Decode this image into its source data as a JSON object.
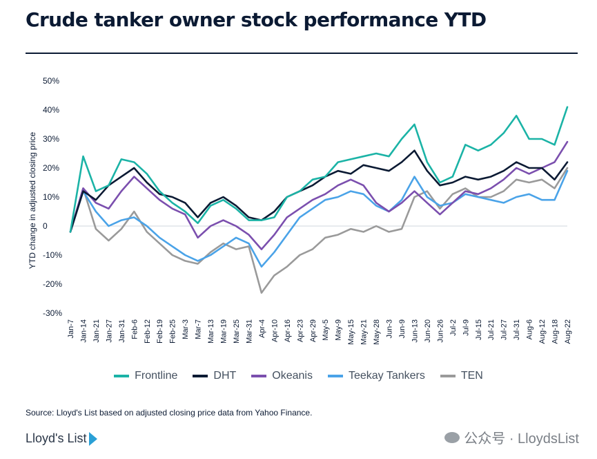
{
  "title": "Crude tanker owner stock performance YTD",
  "source": "Source: Lloyd's List based on adjusted closing price data from Yahoo Finance.",
  "brand": "Lloyd's List",
  "watermark": "公众号 · LloydsList",
  "chart_data": {
    "type": "line",
    "title": "Crude tanker owner stock performance YTD",
    "ylabel": "YTD change in adjusted closing price",
    "ylim": [
      -30,
      50
    ],
    "yticks": [
      50,
      40,
      30,
      20,
      10,
      0,
      -10,
      -20,
      -30
    ],
    "ytick_labels": [
      "50%",
      "40%",
      "30%",
      "20%",
      "10%",
      "0",
      "-10%",
      "-20%",
      "-30%"
    ],
    "categories": [
      "Jan-7",
      "Jan-14",
      "Jan-21",
      "Jan-27",
      "Jan-31",
      "Feb-6",
      "Feb-12",
      "Feb-19",
      "Feb-25",
      "Mar-3",
      "Mar-7",
      "Mar-13",
      "Mar-19",
      "Mar-25",
      "Mar-31",
      "Apr-4",
      "Apr-10",
      "Apr-16",
      "Apr-23",
      "Apr-29",
      "May-5",
      "May-9",
      "May-15",
      "May-21",
      "May-28",
      "Jun-3",
      "Jun-9",
      "Jun-13",
      "Jun-20",
      "Jun-26",
      "Jul-2",
      "Jul-9",
      "Jul-15",
      "Jul-21",
      "Jul-27",
      "Jul-31",
      "Aug-6",
      "Aug-12",
      "Aug-18",
      "Aug-22"
    ],
    "legend_position": "bottom",
    "grid": false,
    "series": [
      {
        "name": "Frontline",
        "color": "#1bb3a6",
        "values": [
          -2,
          24,
          12,
          14,
          23,
          22,
          18,
          12,
          8,
          5,
          1,
          7,
          9,
          6,
          2,
          2,
          3,
          10,
          12,
          16,
          17,
          22,
          23,
          24,
          25,
          24,
          30,
          35,
          22,
          15,
          17,
          28,
          26,
          28,
          32,
          38,
          30,
          30,
          28,
          41
        ]
      },
      {
        "name": "DHT",
        "color": "#0b1a33",
        "values": [
          -2,
          12,
          9,
          14,
          17,
          20,
          15,
          11,
          10,
          8,
          3,
          8,
          10,
          7,
          3,
          2,
          5,
          10,
          12,
          14,
          17,
          19,
          18,
          21,
          20,
          19,
          22,
          26,
          19,
          14,
          15,
          17,
          16,
          17,
          19,
          22,
          20,
          20,
          16,
          22
        ]
      },
      {
        "name": "Okeanis",
        "color": "#7b4fae",
        "values": [
          -2,
          13,
          8,
          6,
          12,
          17,
          13,
          9,
          6,
          4,
          -4,
          0,
          2,
          0,
          -3,
          -8,
          -3,
          3,
          6,
          9,
          11,
          14,
          16,
          14,
          8,
          5,
          8,
          12,
          8,
          4,
          8,
          12,
          11,
          13,
          16,
          20,
          18,
          20,
          22,
          29
        ]
      },
      {
        "name": "Teekay Tankers",
        "color": "#4aa3e8",
        "values": [
          -2,
          12,
          5,
          0,
          2,
          3,
          0,
          -4,
          -7,
          -10,
          -12,
          -10,
          -7,
          -4,
          -6,
          -14,
          -9,
          -3,
          3,
          6,
          9,
          10,
          12,
          11,
          7,
          5,
          9,
          17,
          10,
          7,
          8,
          11,
          10,
          9,
          8,
          10,
          11,
          9,
          9,
          19
        ]
      },
      {
        "name": "TEN",
        "color": "#9a9a9a",
        "values": [
          -2,
          13,
          -1,
          -5,
          -1,
          5,
          -2,
          -6,
          -10,
          -12,
          -13,
          -9,
          -6,
          -8,
          -7,
          -23,
          -17,
          -14,
          -10,
          -8,
          -4,
          -3,
          -1,
          -2,
          0,
          -2,
          -1,
          10,
          12,
          6,
          11,
          13,
          10,
          10,
          12,
          16,
          15,
          16,
          13,
          20
        ]
      }
    ]
  }
}
